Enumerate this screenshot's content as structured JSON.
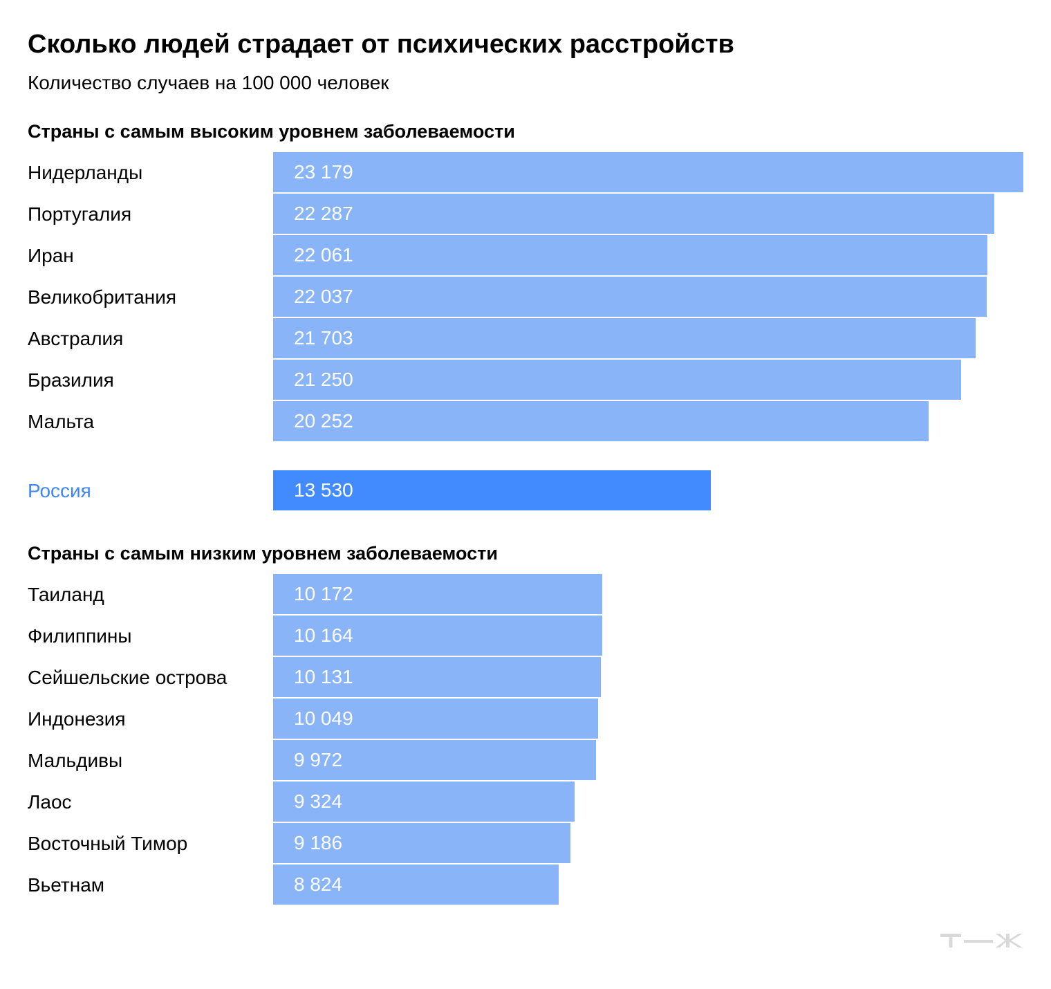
{
  "chart_data": {
    "type": "bar",
    "orientation": "horizontal",
    "title": "Сколько людей страдает от психических расстройств",
    "subtitle": "Количество случаев на 100 000 человек",
    "groups": [
      {
        "title": "Страны с самым высоким уровнем заболеваемости",
        "rows": [
          {
            "category": "Нидерланды",
            "value": 23179,
            "label": "23 179"
          },
          {
            "category": "Португалия",
            "value": 22287,
            "label": "22 287"
          },
          {
            "category": "Иран",
            "value": 22061,
            "label": "22 061"
          },
          {
            "category": "Великобритания",
            "value": 22037,
            "label": "22 037"
          },
          {
            "category": "Австралия",
            "value": 21703,
            "label": "21 703"
          },
          {
            "category": "Бразилия",
            "value": 21250,
            "label": "21 250"
          },
          {
            "category": "Мальта",
            "value": 20252,
            "label": "20 252"
          }
        ]
      },
      {
        "title": "",
        "highlight": true,
        "rows": [
          {
            "category": "Россия",
            "value": 13530,
            "label": "13 530"
          }
        ]
      },
      {
        "title": "Страны с самым низким уровнем заболеваемости",
        "rows": [
          {
            "category": "Таиланд",
            "value": 10172,
            "label": "10 172"
          },
          {
            "category": "Филиппины",
            "value": 10164,
            "label": "10 164"
          },
          {
            "category": "Сейшельские острова",
            "value": 10131,
            "label": "10 131"
          },
          {
            "category": "Индонезия",
            "value": 10049,
            "label": "10 049"
          },
          {
            "category": "Мальдивы",
            "value": 9972,
            "label": "9 972"
          },
          {
            "category": "Лаос",
            "value": 9324,
            "label": "9 324"
          },
          {
            "category": "Восточный Тимор",
            "value": 9186,
            "label": "9 186"
          },
          {
            "category": "Вьетнам",
            "value": 8824,
            "label": "8 824"
          }
        ]
      }
    ],
    "colors": {
      "bar": "#8ab4f8",
      "highlight_bar": "#428bff",
      "highlight_label": "#3d86f5",
      "value_text": "#ffffff"
    },
    "grid": false,
    "legend": "none"
  },
  "logo": {
    "icon": "tzh-logo-icon",
    "color": "#d9d9d9"
  }
}
